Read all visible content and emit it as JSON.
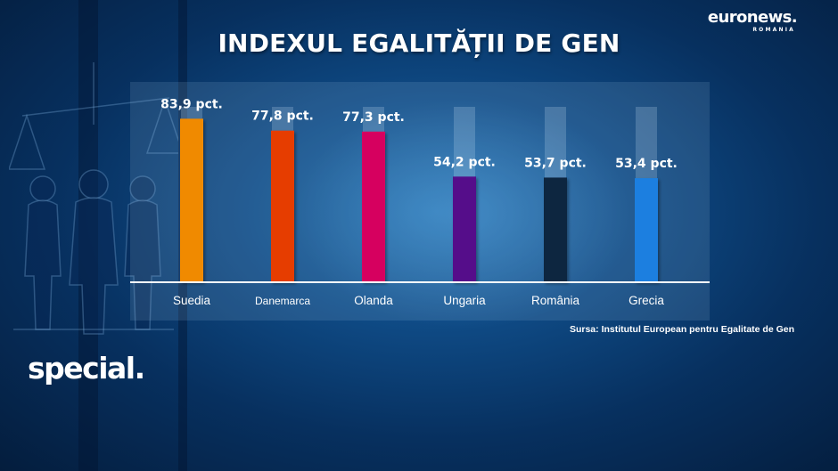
{
  "logo": {
    "primary": "euronews.",
    "secondary": "ROMANIA"
  },
  "branding": {
    "program": "special."
  },
  "source_note": "Sursa: Institutul European pentru Egalitate de Gen",
  "chart_data": {
    "type": "bar",
    "title": "INDEXUL EGALITĂȚII DE GEN",
    "categories": [
      "Suedia",
      "Danemarca",
      "Olanda",
      "Ungaria",
      "România",
      "Grecia"
    ],
    "values": [
      83.9,
      77.8,
      77.3,
      54.2,
      53.7,
      53.4
    ],
    "value_labels": [
      "83,9 pct.",
      "77,8 pct.",
      "77,3 pct.",
      "54,2 pct.",
      "53,7 pct.",
      "53,4 pct."
    ],
    "colors": [
      "#f08a00",
      "#e63c00",
      "#d6005f",
      "#54108a",
      "#0c2840",
      "#1a7fe0"
    ],
    "xlabel": "",
    "ylabel": "",
    "ylim": [
      0,
      100
    ],
    "grid": false,
    "legend": "none"
  }
}
